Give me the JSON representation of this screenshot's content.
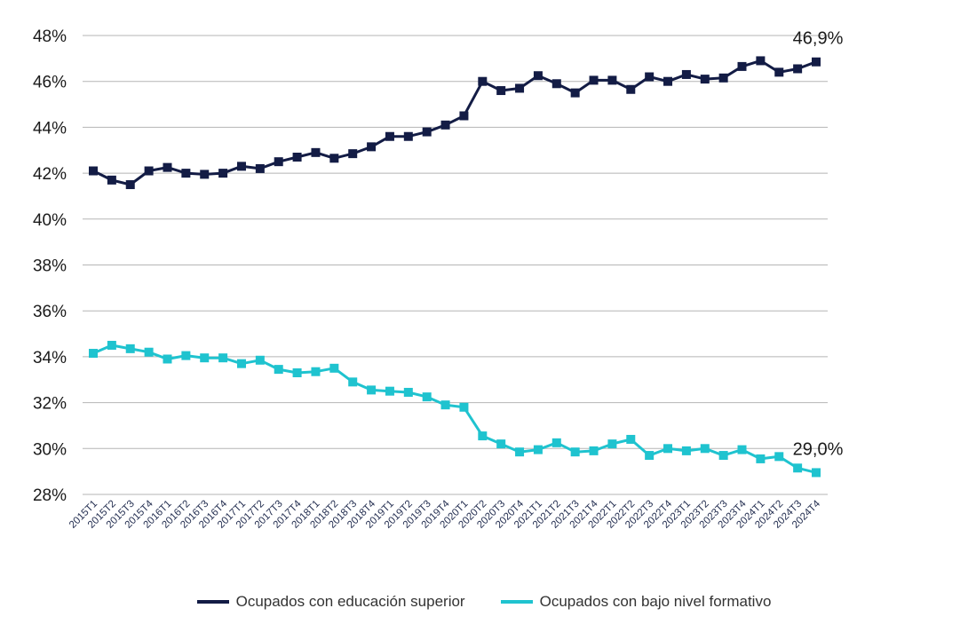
{
  "chart_data": {
    "type": "line",
    "title": "",
    "xlabel": "",
    "ylabel": "",
    "ylim": [
      28,
      48
    ],
    "yticks": [
      28,
      30,
      32,
      34,
      36,
      38,
      40,
      42,
      44,
      46,
      48
    ],
    "ytick_labels": [
      "28%",
      "30%",
      "32%",
      "34%",
      "36%",
      "38%",
      "40%",
      "42%",
      "44%",
      "46%",
      "48%"
    ],
    "grid": "horizontal",
    "legend_position": "bottom-center",
    "categories": [
      "2015T1",
      "2015T2",
      "2015T3",
      "2015T4",
      "2016T1",
      "2016T2",
      "2016T3",
      "2016T4",
      "2017T1",
      "2017T2",
      "2017T3",
      "2017T4",
      "2018T1",
      "2018T2",
      "2018T3",
      "2018T4",
      "2019T1",
      "2019T2",
      "2019T3",
      "2019T4",
      "2020T1",
      "2020T2",
      "2020T3",
      "2020T4",
      "2021T1",
      "2021T2",
      "2021T3",
      "2021T4",
      "2022T1",
      "2022T2",
      "2022T3",
      "2022T4",
      "2023T1",
      "2023T2",
      "2023T3",
      "2023T4",
      "2024T1",
      "2024T2",
      "2024T3",
      "2024T4"
    ],
    "series": [
      {
        "name": "Ocupados con educación superior",
        "color": "#131c45",
        "values": [
          42.1,
          41.7,
          41.5,
          42.1,
          42.25,
          42.0,
          41.95,
          42.0,
          42.3,
          42.2,
          42.5,
          42.7,
          42.9,
          42.65,
          42.85,
          43.15,
          43.6,
          43.6,
          43.8,
          44.1,
          44.5,
          46.0,
          45.6,
          45.7,
          46.25,
          45.9,
          45.5,
          46.05,
          46.05,
          45.65,
          46.2,
          46.0,
          46.3,
          46.1,
          46.15,
          46.65,
          46.9,
          46.4,
          46.55,
          46.85
        ],
        "end_label": "46,9%"
      },
      {
        "name": "Ocupados con bajo nivel formativo",
        "color": "#1fc3cf",
        "values": [
          34.15,
          34.5,
          34.35,
          34.2,
          33.9,
          34.05,
          33.95,
          33.95,
          33.7,
          33.85,
          33.45,
          33.3,
          33.35,
          33.5,
          32.9,
          32.55,
          32.5,
          32.45,
          32.25,
          31.9,
          31.8,
          30.55,
          30.2,
          29.85,
          29.95,
          30.25,
          29.85,
          29.9,
          30.2,
          30.4,
          29.7,
          30.0,
          29.9,
          30.0,
          29.7,
          29.95,
          29.55,
          29.65,
          29.15,
          28.95
        ],
        "end_label": "29,0%"
      }
    ]
  }
}
